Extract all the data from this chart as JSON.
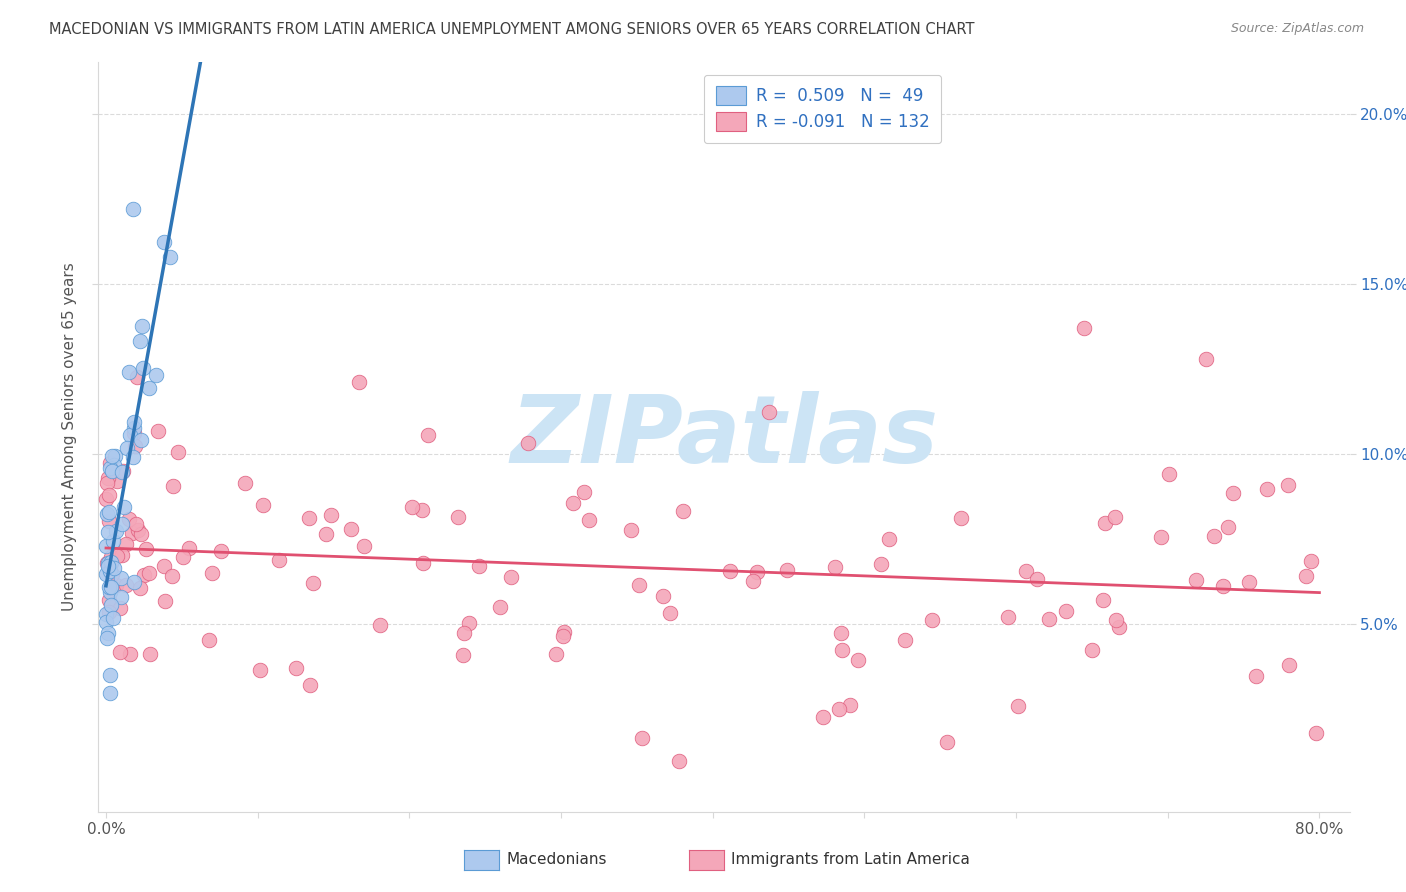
{
  "title": "MACEDONIAN VS IMMIGRANTS FROM LATIN AMERICA UNEMPLOYMENT AMONG SENIORS OVER 65 YEARS CORRELATION CHART",
  "source": "Source: ZipAtlas.com",
  "ylabel": "Unemployment Among Seniors over 65 years",
  "xlim": [
    -0.005,
    0.82
  ],
  "ylim": [
    -0.005,
    0.215
  ],
  "right_yticks": [
    0.05,
    0.1,
    0.15,
    0.2
  ],
  "macedonian_R": 0.509,
  "macedonian_N": 49,
  "latin_R": -0.091,
  "latin_N": 132,
  "macedonian_color": "#adc9ee",
  "macedonian_edge_color": "#5b9bd5",
  "macedonian_line_color": "#2e75b6",
  "latin_color": "#f4a7b9",
  "latin_edge_color": "#e06080",
  "latin_line_color": "#e05070",
  "background_color": "#ffffff",
  "grid_color": "#d8d8d8",
  "watermark_color": "#cce4f5",
  "title_color": "#404040",
  "source_color": "#888888",
  "axis_label_color": "#555555",
  "right_tick_color": "#3070c0",
  "bottom_tick_color": "#555555"
}
